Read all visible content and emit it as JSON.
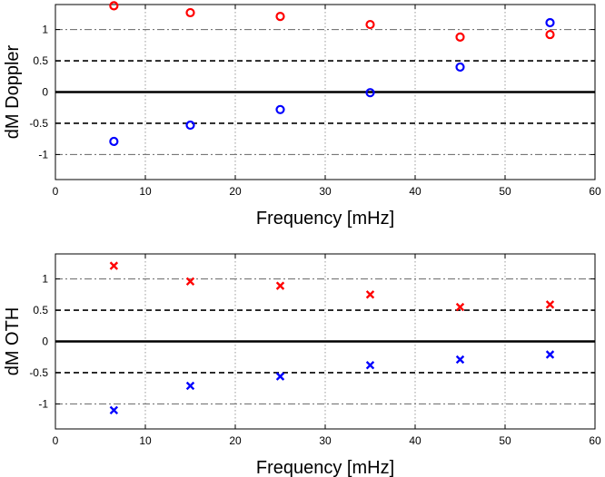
{
  "chart_data": [
    {
      "type": "scatter",
      "xlabel": "Frequency [mHz]",
      "ylabel": "dM Doppler",
      "xlim": [
        0,
        60
      ],
      "ylim": [
        -1.4,
        1.4
      ],
      "xticks": [
        0,
        10,
        20,
        30,
        40,
        50,
        60
      ],
      "yticks": [
        -1,
        -0.5,
        0,
        0.5,
        1
      ],
      "vlines": [
        10,
        20,
        30,
        40,
        50
      ],
      "hlines": [
        {
          "y": 1,
          "style": "dashdot"
        },
        {
          "y": 0.5,
          "style": "dashed"
        },
        {
          "y": 0,
          "style": "solid"
        },
        {
          "y": -0.5,
          "style": "dashed"
        },
        {
          "y": -1,
          "style": "dashdot"
        }
      ],
      "marker": "circle",
      "series": [
        {
          "color": "#ff0000",
          "x": [
            6.5,
            15,
            25,
            35,
            45,
            55
          ],
          "y": [
            1.38,
            1.27,
            1.21,
            1.08,
            0.88,
            0.92
          ]
        },
        {
          "color": "#0000ff",
          "x": [
            6.5,
            15,
            25,
            35,
            45,
            55
          ],
          "y": [
            -0.79,
            -0.53,
            -0.28,
            -0.01,
            0.4,
            1.11
          ]
        }
      ]
    },
    {
      "type": "scatter",
      "xlabel": "Frequency [mHz]",
      "ylabel": "dM OTH",
      "xlim": [
        0,
        60
      ],
      "ylim": [
        -1.4,
        1.4
      ],
      "xticks": [
        0,
        10,
        20,
        30,
        40,
        50,
        60
      ],
      "yticks": [
        -1,
        -0.5,
        0,
        0.5,
        1
      ],
      "vlines": [
        10,
        20,
        30,
        40,
        50
      ],
      "hlines": [
        {
          "y": 1,
          "style": "dashdot"
        },
        {
          "y": 0.5,
          "style": "dashed"
        },
        {
          "y": 0,
          "style": "solid"
        },
        {
          "y": -0.5,
          "style": "dashed"
        },
        {
          "y": -1,
          "style": "dashdot"
        }
      ],
      "marker": "x",
      "series": [
        {
          "color": "#ff0000",
          "x": [
            6.5,
            15,
            25,
            35,
            45,
            55
          ],
          "y": [
            1.21,
            0.96,
            0.89,
            0.75,
            0.55,
            0.59
          ]
        },
        {
          "color": "#0000ff",
          "x": [
            6.5,
            15,
            25,
            35,
            45,
            55
          ],
          "y": [
            -1.1,
            -0.71,
            -0.56,
            -0.38,
            -0.29,
            -0.21
          ]
        }
      ]
    }
  ]
}
